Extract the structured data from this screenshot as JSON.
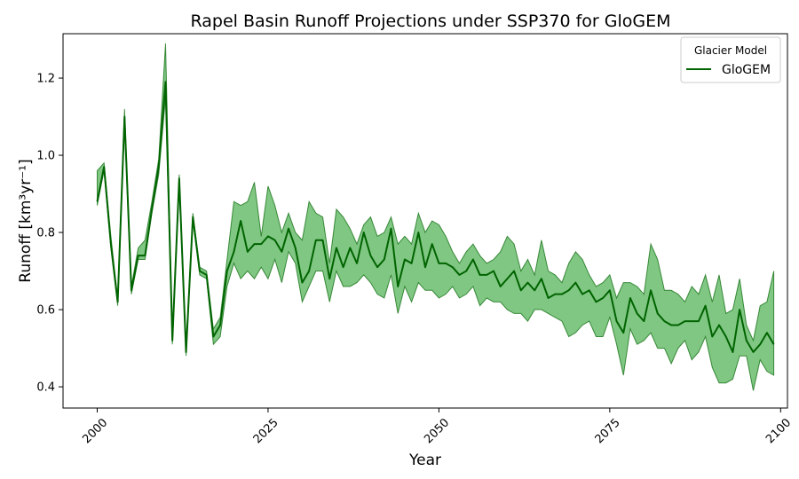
{
  "chart_data": {
    "type": "line",
    "title": "Rapel Basin Runoff Projections under SSP370 for GloGEM",
    "xlabel": "Year",
    "ylabel": "Runoff [km³yr⁻¹]",
    "xlim": [
      1995,
      2101
    ],
    "ylim": [
      0.345,
      1.315
    ],
    "xticks": [
      2000,
      2025,
      2050,
      2075,
      2100
    ],
    "yticks": [
      0.4,
      0.6,
      0.8,
      1.0,
      1.2
    ],
    "ytick_labels": [
      "0.4",
      "0.6",
      "0.8",
      "1.0",
      "1.2"
    ],
    "grid": false,
    "legend": {
      "title": "Glacier Model",
      "placement": "top-right"
    },
    "colors": {
      "line": "#006400",
      "band": "#4caf50"
    },
    "series": [
      {
        "name": "GloGEM",
        "x": [
          2000,
          2001,
          2002,
          2003,
          2004,
          2005,
          2006,
          2007,
          2008,
          2009,
          2010,
          2011,
          2012,
          2013,
          2014,
          2015,
          2016,
          2017,
          2018,
          2019,
          2020,
          2021,
          2022,
          2023,
          2024,
          2025,
          2026,
          2027,
          2028,
          2029,
          2030,
          2031,
          2032,
          2033,
          2034,
          2035,
          2036,
          2037,
          2038,
          2039,
          2040,
          2041,
          2042,
          2043,
          2044,
          2045,
          2046,
          2047,
          2048,
          2049,
          2050,
          2051,
          2052,
          2053,
          2054,
          2055,
          2056,
          2057,
          2058,
          2059,
          2060,
          2061,
          2062,
          2063,
          2064,
          2065,
          2066,
          2067,
          2068,
          2069,
          2070,
          2071,
          2072,
          2073,
          2074,
          2075,
          2076,
          2077,
          2078,
          2079,
          2080,
          2081,
          2082,
          2083,
          2084,
          2085,
          2086,
          2087,
          2088,
          2089,
          2090,
          2091,
          2092,
          2093,
          2094,
          2095,
          2096,
          2097,
          2098,
          2099
        ],
        "median": [
          0.88,
          0.97,
          0.77,
          0.62,
          1.1,
          0.65,
          0.74,
          0.74,
          0.86,
          0.97,
          1.19,
          0.52,
          0.94,
          0.49,
          0.84,
          0.7,
          0.69,
          0.53,
          0.56,
          0.7,
          0.75,
          0.83,
          0.75,
          0.77,
          0.77,
          0.79,
          0.78,
          0.75,
          0.81,
          0.76,
          0.67,
          0.7,
          0.78,
          0.78,
          0.68,
          0.76,
          0.71,
          0.76,
          0.72,
          0.8,
          0.74,
          0.71,
          0.73,
          0.81,
          0.66,
          0.73,
          0.72,
          0.8,
          0.71,
          0.77,
          0.72,
          0.72,
          0.71,
          0.69,
          0.7,
          0.73,
          0.69,
          0.69,
          0.7,
          0.66,
          0.68,
          0.7,
          0.65,
          0.67,
          0.65,
          0.68,
          0.63,
          0.64,
          0.64,
          0.65,
          0.67,
          0.64,
          0.65,
          0.62,
          0.63,
          0.65,
          0.57,
          0.54,
          0.63,
          0.59,
          0.57,
          0.65,
          0.59,
          0.57,
          0.56,
          0.56,
          0.57,
          0.57,
          0.57,
          0.61,
          0.53,
          0.56,
          0.53,
          0.49,
          0.6,
          0.52,
          0.49,
          0.51,
          0.54,
          0.51
        ],
        "lower": [
          0.87,
          0.96,
          0.76,
          0.61,
          1.08,
          0.64,
          0.73,
          0.73,
          0.85,
          0.95,
          1.15,
          0.51,
          0.92,
          0.48,
          0.83,
          0.69,
          0.68,
          0.51,
          0.53,
          0.66,
          0.72,
          0.68,
          0.7,
          0.68,
          0.71,
          0.68,
          0.73,
          0.67,
          0.75,
          0.72,
          0.62,
          0.66,
          0.7,
          0.7,
          0.62,
          0.7,
          0.66,
          0.66,
          0.67,
          0.69,
          0.67,
          0.64,
          0.63,
          0.69,
          0.59,
          0.66,
          0.62,
          0.67,
          0.65,
          0.65,
          0.63,
          0.64,
          0.66,
          0.63,
          0.64,
          0.66,
          0.61,
          0.63,
          0.62,
          0.62,
          0.6,
          0.59,
          0.59,
          0.57,
          0.6,
          0.6,
          0.59,
          0.58,
          0.57,
          0.53,
          0.54,
          0.56,
          0.57,
          0.53,
          0.53,
          0.58,
          0.51,
          0.43,
          0.55,
          0.51,
          0.52,
          0.54,
          0.5,
          0.5,
          0.46,
          0.5,
          0.52,
          0.47,
          0.49,
          0.53,
          0.45,
          0.41,
          0.41,
          0.42,
          0.48,
          0.48,
          0.39,
          0.47,
          0.44,
          0.43
        ],
        "upper": [
          0.96,
          0.98,
          0.79,
          0.63,
          1.12,
          0.66,
          0.76,
          0.78,
          0.88,
          0.99,
          1.29,
          0.53,
          0.95,
          0.5,
          0.85,
          0.71,
          0.7,
          0.55,
          0.58,
          0.73,
          0.88,
          0.87,
          0.88,
          0.93,
          0.79,
          0.92,
          0.87,
          0.8,
          0.85,
          0.8,
          0.78,
          0.88,
          0.85,
          0.84,
          0.72,
          0.86,
          0.84,
          0.81,
          0.77,
          0.82,
          0.84,
          0.79,
          0.8,
          0.84,
          0.77,
          0.79,
          0.77,
          0.85,
          0.8,
          0.83,
          0.82,
          0.79,
          0.75,
          0.72,
          0.75,
          0.77,
          0.74,
          0.72,
          0.73,
          0.75,
          0.79,
          0.77,
          0.7,
          0.73,
          0.69,
          0.78,
          0.7,
          0.69,
          0.67,
          0.72,
          0.75,
          0.73,
          0.69,
          0.66,
          0.67,
          0.69,
          0.63,
          0.67,
          0.67,
          0.66,
          0.64,
          0.77,
          0.73,
          0.65,
          0.65,
          0.64,
          0.62,
          0.66,
          0.64,
          0.69,
          0.62,
          0.69,
          0.59,
          0.6,
          0.68,
          0.56,
          0.52,
          0.61,
          0.62,
          0.7
        ]
      }
    ]
  }
}
